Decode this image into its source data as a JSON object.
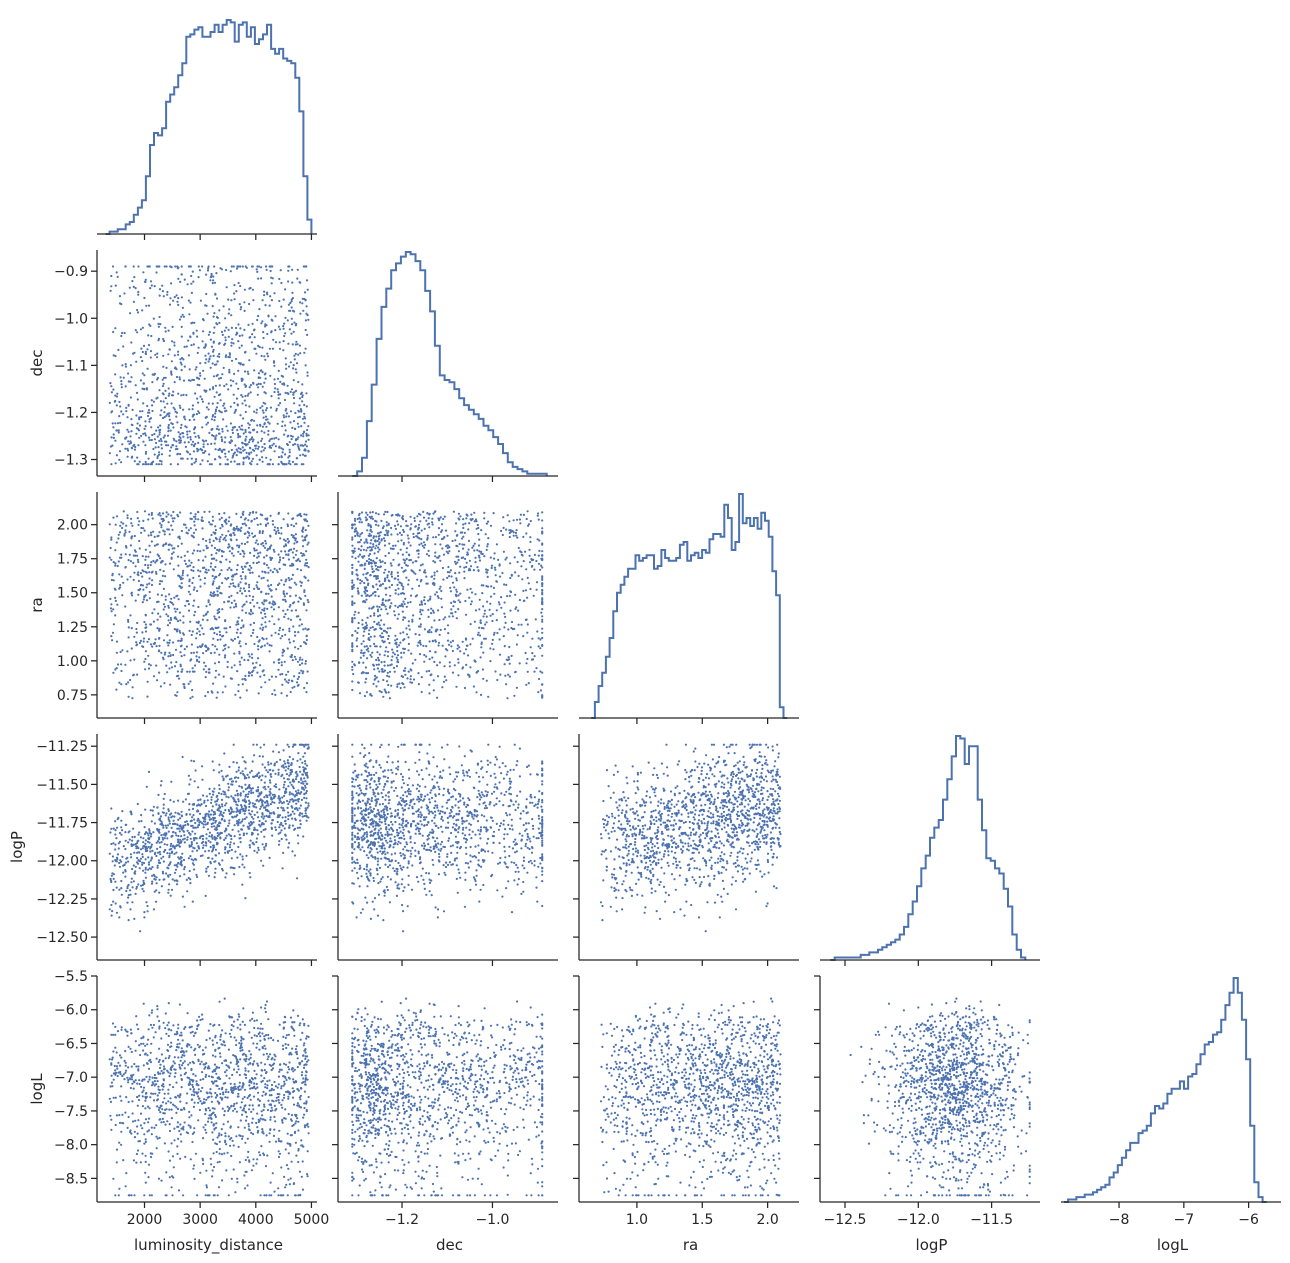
{
  "chart_data": {
    "type": "corner",
    "variables": [
      "luminosity_distance",
      "dec",
      "ra",
      "logP",
      "logL"
    ],
    "axis_labels": {
      "luminosity_distance": "luminosity_distance",
      "dec": "dec",
      "ra": "ra",
      "logP": "logP",
      "logL": "logL"
    },
    "color": "#4c72b0",
    "grid": false,
    "ranges": {
      "luminosity_distance": [
        1200,
        5100
      ],
      "dec": [
        -1.335,
        -0.855
      ],
      "ra": [
        0.58,
        2.24
      ],
      "logP": [
        -12.65,
        -11.17
      ],
      "logL": [
        -8.85,
        -5.5
      ]
    },
    "ticks": {
      "luminosity_distance": [
        {
          "v": 2000,
          "t": "2000"
        },
        {
          "v": 3000,
          "t": "3000"
        },
        {
          "v": 4000,
          "t": "4000"
        },
        {
          "v": 5000,
          "t": "5000"
        }
      ],
      "dec": [
        {
          "v": -1.2,
          "t": "−1.2"
        },
        {
          "v": -1.0,
          "t": "−1.0"
        }
      ],
      "dec_y": [
        {
          "v": -0.9,
          "t": "−0.9"
        },
        {
          "v": -1.0,
          "t": "−1.0"
        },
        {
          "v": -1.1,
          "t": "−1.1"
        },
        {
          "v": -1.2,
          "t": "−1.2"
        },
        {
          "v": -1.3,
          "t": "−1.3"
        }
      ],
      "ra": [
        {
          "v": 1.0,
          "t": "1.0"
        },
        {
          "v": 1.5,
          "t": "1.5"
        },
        {
          "v": 2.0,
          "t": "2.0"
        }
      ],
      "ra_y": [
        {
          "v": 2.0,
          "t": "2.00"
        },
        {
          "v": 1.75,
          "t": "1.75"
        },
        {
          "v": 1.5,
          "t": "1.50"
        },
        {
          "v": 1.25,
          "t": "1.25"
        },
        {
          "v": 1.0,
          "t": "1.00"
        },
        {
          "v": 0.75,
          "t": "0.75"
        }
      ],
      "logP": [
        {
          "v": -12.5,
          "t": "−12.5"
        },
        {
          "v": -12.0,
          "t": "−12.0"
        },
        {
          "v": -11.5,
          "t": "−11.5"
        }
      ],
      "logP_y": [
        {
          "v": -11.25,
          "t": "−11.25"
        },
        {
          "v": -11.5,
          "t": "−11.50"
        },
        {
          "v": -11.75,
          "t": "−11.75"
        },
        {
          "v": -12.0,
          "t": "−12.00"
        },
        {
          "v": -12.25,
          "t": "−12.25"
        },
        {
          "v": -12.5,
          "t": "−12.50"
        }
      ],
      "logL": [
        {
          "v": -8,
          "t": "−8"
        },
        {
          "v": -7,
          "t": "−7"
        },
        {
          "v": -6,
          "t": "−6"
        }
      ],
      "logL_y": [
        {
          "v": -5.5,
          "t": "−5.5"
        },
        {
          "v": -6.0,
          "t": "−6.0"
        },
        {
          "v": -6.5,
          "t": "−6.5"
        },
        {
          "v": -7.0,
          "t": "−7.0"
        },
        {
          "v": -7.5,
          "t": "−7.5"
        },
        {
          "v": -8.0,
          "t": "−8.0"
        },
        {
          "v": -8.5,
          "t": "−8.5"
        }
      ]
    },
    "histograms": {
      "luminosity_distance": {
        "edges": [
          1300,
          5000
        ],
        "counts": [
          0,
          1,
          1,
          2,
          2,
          4,
          5,
          8,
          11,
          14,
          24,
          37,
          42,
          41,
          44,
          55,
          58,
          61,
          66,
          71,
          82,
          83,
          85,
          86,
          82,
          82,
          84,
          87,
          84,
          87,
          89,
          88,
          80,
          87,
          88,
          82,
          86,
          79,
          81,
          83,
          87,
          77,
          75,
          77,
          73,
          72,
          71,
          65,
          51,
          24,
          6
        ]
      },
      "dec": {
        "edges": [
          -1.31,
          -0.88
        ],
        "counts": [
          0,
          2,
          8,
          24,
          40,
          60,
          74,
          82,
          90,
          93,
          96,
          98,
          97,
          94,
          90,
          81,
          72,
          57,
          44,
          42,
          41,
          38,
          34,
          31,
          29,
          27,
          25,
          22,
          20,
          17,
          14,
          10,
          6,
          4,
          3,
          2,
          1,
          1,
          1,
          1
        ]
      },
      "ra": {
        "edges": [
          0.65,
          2.15
        ],
        "counts": [
          0,
          6,
          12,
          17,
          23,
          30,
          40,
          47,
          50,
          53,
          56,
          56,
          61,
          59,
          60,
          61,
          61,
          56,
          57,
          63,
          60,
          59,
          59,
          60,
          65,
          66,
          59,
          61,
          62,
          60,
          63,
          62,
          67,
          69,
          69,
          68,
          80,
          75,
          63,
          66,
          84,
          73,
          75,
          72,
          75,
          71,
          77,
          74,
          68,
          55,
          46,
          4,
          0
        ]
      },
      "logP": {
        "edges": [
          -12.6,
          -11.27
        ],
        "counts": [
          0,
          1,
          1,
          1,
          1,
          1,
          1,
          2,
          2,
          3,
          3,
          4,
          5,
          6,
          7,
          8,
          10,
          13,
          18,
          23,
          29,
          36,
          41,
          48,
          52,
          55,
          63,
          71,
          80,
          88,
          87,
          77,
          84,
          84,
          63,
          51,
          40,
          39,
          36,
          34,
          28,
          21,
          10,
          4,
          1
        ]
      },
      "logL": {
        "edges": [
          -8.85,
          -5.72
        ],
        "counts": [
          0,
          1,
          1,
          2,
          2,
          3,
          3,
          4,
          5,
          6,
          7,
          10,
          12,
          15,
          18,
          21,
          24,
          24,
          28,
          29,
          31,
          36,
          39,
          38,
          40,
          44,
          46,
          46,
          49,
          46,
          51,
          52,
          56,
          60,
          64,
          65,
          68,
          69,
          74,
          80,
          85,
          91,
          85,
          74,
          58,
          31,
          8,
          2,
          0
        ]
      }
    }
  }
}
